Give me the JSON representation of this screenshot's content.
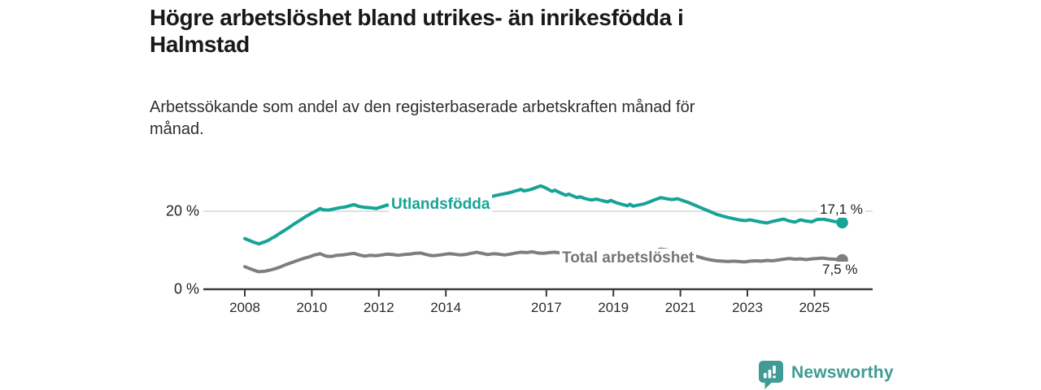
{
  "header": {
    "title_lines": [
      "Högre arbetslöshet bland utrikes- än inrikesfödda i",
      "Halmstad"
    ],
    "subtitle_lines": [
      "Arbetssökande som andel av den registerbaserade arbetskraften månad för",
      "månad."
    ]
  },
  "footer": {
    "brand": "Newsworthy",
    "logo_icon": "bar-chart-speech-bubble-icon",
    "brand_color": "#3f9b94"
  },
  "colors": {
    "series_foreign_born": "#17a398",
    "series_total": "#7e7e7e",
    "axis": "#3a3a3a",
    "gridline": "#cdcdcd",
    "text_dark": "#191919"
  },
  "chart_data": {
    "type": "line",
    "title": "Högre arbetslöshet bland utrikes- än inrikesfödda i Halmstad",
    "subtitle": "Arbetssökande som andel av den registerbaserade arbetskraften månad för månad.",
    "xlabel": "",
    "ylabel": "",
    "unit": "%",
    "ylim": [
      0,
      28
    ],
    "xlim_years": [
      2006.8,
      2026.7
    ],
    "grid": "y-at-20-only",
    "legend_position": "inline-labels",
    "x_ticks": [
      {
        "label": "2008",
        "year": 2008
      },
      {
        "label": "2010",
        "year": 2010
      },
      {
        "label": "2012",
        "year": 2012
      },
      {
        "label": "2014",
        "year": 2014
      },
      {
        "label": "2017",
        "year": 2017
      },
      {
        "label": "2019",
        "year": 2019
      },
      {
        "label": "2021",
        "year": 2021
      },
      {
        "label": "2023",
        "year": 2023
      },
      {
        "label": "2025",
        "year": 2025
      }
    ],
    "y_ticks": [
      {
        "label": "20 %",
        "value": 20
      },
      {
        "label": "0 %",
        "value": 0
      }
    ],
    "series": [
      {
        "name": "Utlandsfödda",
        "color": "#17a398",
        "end_label": "17,1 %",
        "end_value": 17.1,
        "points": [
          [
            2008.0,
            13.0
          ],
          [
            2008.08,
            12.7
          ],
          [
            2008.17,
            12.4
          ],
          [
            2008.25,
            12.1
          ],
          [
            2008.33,
            11.9
          ],
          [
            2008.42,
            11.6
          ],
          [
            2008.5,
            11.9
          ],
          [
            2008.58,
            12.1
          ],
          [
            2008.67,
            12.4
          ],
          [
            2008.75,
            12.8
          ],
          [
            2008.83,
            13.2
          ],
          [
            2008.92,
            13.6
          ],
          [
            2009.0,
            14.1
          ],
          [
            2009.17,
            15.0
          ],
          [
            2009.33,
            15.9
          ],
          [
            2009.5,
            16.9
          ],
          [
            2009.67,
            17.8
          ],
          [
            2009.83,
            18.7
          ],
          [
            2010.0,
            19.5
          ],
          [
            2010.17,
            20.3
          ],
          [
            2010.25,
            20.7
          ],
          [
            2010.33,
            20.4
          ],
          [
            2010.5,
            20.3
          ],
          [
            2010.67,
            20.6
          ],
          [
            2010.83,
            20.9
          ],
          [
            2011.0,
            21.1
          ],
          [
            2011.17,
            21.5
          ],
          [
            2011.25,
            21.7
          ],
          [
            2011.42,
            21.2
          ],
          [
            2011.58,
            21.0
          ],
          [
            2011.75,
            20.9
          ],
          [
            2011.92,
            20.7
          ],
          [
            2012.08,
            21.1
          ],
          [
            2012.25,
            21.6
          ],
          [
            2012.42,
            21.3
          ],
          [
            2012.58,
            21.1
          ],
          [
            2012.75,
            21.0
          ],
          [
            2012.92,
            21.2
          ],
          [
            2013.08,
            21.5
          ],
          [
            2013.25,
            21.8
          ],
          [
            2013.42,
            21.5
          ],
          [
            2013.58,
            21.3
          ],
          [
            2013.75,
            21.2
          ],
          [
            2013.92,
            21.4
          ],
          [
            2014.08,
            21.7
          ],
          [
            2014.25,
            21.9
          ],
          [
            2014.42,
            21.6
          ],
          [
            2014.58,
            21.5
          ],
          [
            2014.75,
            21.8
          ],
          [
            2014.92,
            22.4
          ],
          [
            2015.08,
            23.0
          ],
          [
            2015.25,
            23.5
          ],
          [
            2015.42,
            23.9
          ],
          [
            2015.58,
            24.2
          ],
          [
            2015.75,
            24.5
          ],
          [
            2015.92,
            24.8
          ],
          [
            2016.08,
            25.2
          ],
          [
            2016.25,
            25.6
          ],
          [
            2016.33,
            25.2
          ],
          [
            2016.5,
            25.5
          ],
          [
            2016.67,
            26.0
          ],
          [
            2016.83,
            26.5
          ],
          [
            2016.92,
            26.2
          ],
          [
            2017.0,
            25.9
          ],
          [
            2017.08,
            25.5
          ],
          [
            2017.17,
            25.1
          ],
          [
            2017.25,
            25.4
          ],
          [
            2017.42,
            24.7
          ],
          [
            2017.58,
            24.1
          ],
          [
            2017.67,
            24.4
          ],
          [
            2017.83,
            23.8
          ],
          [
            2017.92,
            23.5
          ],
          [
            2018.0,
            23.7
          ],
          [
            2018.17,
            23.2
          ],
          [
            2018.33,
            22.9
          ],
          [
            2018.5,
            23.1
          ],
          [
            2018.67,
            22.7
          ],
          [
            2018.83,
            22.4
          ],
          [
            2018.92,
            22.8
          ],
          [
            2019.08,
            22.2
          ],
          [
            2019.25,
            21.8
          ],
          [
            2019.42,
            21.4
          ],
          [
            2019.5,
            21.8
          ],
          [
            2019.58,
            21.3
          ],
          [
            2019.75,
            21.6
          ],
          [
            2019.92,
            21.9
          ],
          [
            2020.08,
            22.4
          ],
          [
            2020.25,
            23.0
          ],
          [
            2020.42,
            23.5
          ],
          [
            2020.58,
            23.2
          ],
          [
            2020.75,
            23.0
          ],
          [
            2020.92,
            23.2
          ],
          [
            2021.08,
            22.7
          ],
          [
            2021.25,
            22.2
          ],
          [
            2021.42,
            21.6
          ],
          [
            2021.58,
            21.0
          ],
          [
            2021.75,
            20.4
          ],
          [
            2021.92,
            19.8
          ],
          [
            2022.08,
            19.2
          ],
          [
            2022.25,
            18.8
          ],
          [
            2022.42,
            18.4
          ],
          [
            2022.58,
            18.1
          ],
          [
            2022.75,
            17.8
          ],
          [
            2022.92,
            17.6
          ],
          [
            2023.08,
            17.8
          ],
          [
            2023.25,
            17.5
          ],
          [
            2023.42,
            17.2
          ],
          [
            2023.58,
            17.0
          ],
          [
            2023.75,
            17.4
          ],
          [
            2023.92,
            17.7
          ],
          [
            2024.08,
            18.0
          ],
          [
            2024.25,
            17.5
          ],
          [
            2024.42,
            17.2
          ],
          [
            2024.58,
            17.8
          ],
          [
            2024.75,
            17.5
          ],
          [
            2024.92,
            17.3
          ],
          [
            2025.08,
            17.9
          ],
          [
            2025.25,
            18.0
          ],
          [
            2025.42,
            17.7
          ],
          [
            2025.58,
            17.4
          ],
          [
            2025.75,
            17.2
          ],
          [
            2025.83,
            17.1
          ]
        ]
      },
      {
        "name": "Total arbetslöshet",
        "color": "#7e7e7e",
        "end_label": "7,5 %",
        "end_value": 7.5,
        "points": [
          [
            2008.0,
            5.8
          ],
          [
            2008.17,
            5.2
          ],
          [
            2008.33,
            4.7
          ],
          [
            2008.42,
            4.5
          ],
          [
            2008.58,
            4.6
          ],
          [
            2008.75,
            4.9
          ],
          [
            2008.92,
            5.3
          ],
          [
            2009.08,
            5.8
          ],
          [
            2009.25,
            6.4
          ],
          [
            2009.42,
            6.9
          ],
          [
            2009.58,
            7.4
          ],
          [
            2009.75,
            7.9
          ],
          [
            2009.92,
            8.3
          ],
          [
            2010.08,
            8.8
          ],
          [
            2010.25,
            9.1
          ],
          [
            2010.42,
            8.5
          ],
          [
            2010.58,
            8.4
          ],
          [
            2010.75,
            8.7
          ],
          [
            2010.92,
            8.8
          ],
          [
            2011.08,
            9.0
          ],
          [
            2011.25,
            9.2
          ],
          [
            2011.42,
            8.8
          ],
          [
            2011.58,
            8.5
          ],
          [
            2011.75,
            8.7
          ],
          [
            2011.92,
            8.6
          ],
          [
            2012.08,
            8.8
          ],
          [
            2012.25,
            9.0
          ],
          [
            2012.42,
            8.9
          ],
          [
            2012.58,
            8.7
          ],
          [
            2012.75,
            8.9
          ],
          [
            2012.92,
            9.0
          ],
          [
            2013.08,
            9.2
          ],
          [
            2013.25,
            9.3
          ],
          [
            2013.42,
            8.9
          ],
          [
            2013.58,
            8.6
          ],
          [
            2013.75,
            8.7
          ],
          [
            2013.92,
            8.9
          ],
          [
            2014.08,
            9.1
          ],
          [
            2014.25,
            9.0
          ],
          [
            2014.42,
            8.8
          ],
          [
            2014.58,
            8.9
          ],
          [
            2014.75,
            9.2
          ],
          [
            2014.92,
            9.5
          ],
          [
            2015.08,
            9.2
          ],
          [
            2015.25,
            8.9
          ],
          [
            2015.42,
            9.1
          ],
          [
            2015.58,
            9.0
          ],
          [
            2015.75,
            8.8
          ],
          [
            2015.92,
            9.0
          ],
          [
            2016.08,
            9.3
          ],
          [
            2016.25,
            9.5
          ],
          [
            2016.42,
            9.4
          ],
          [
            2016.58,
            9.6
          ],
          [
            2016.75,
            9.3
          ],
          [
            2016.92,
            9.2
          ],
          [
            2017.08,
            9.4
          ],
          [
            2017.25,
            9.5
          ],
          [
            2017.42,
            9.3
          ],
          [
            2017.58,
            9.1
          ],
          [
            2017.75,
            9.0
          ],
          [
            2017.92,
            9.2
          ],
          [
            2018.08,
            9.0
          ],
          [
            2018.25,
            8.8
          ],
          [
            2018.42,
            8.6
          ],
          [
            2018.58,
            8.7
          ],
          [
            2018.75,
            8.5
          ],
          [
            2018.92,
            8.6
          ],
          [
            2019.08,
            8.4
          ],
          [
            2019.25,
            8.2
          ],
          [
            2019.42,
            8.3
          ],
          [
            2019.58,
            8.1
          ],
          [
            2019.75,
            8.2
          ],
          [
            2019.92,
            8.5
          ],
          [
            2020.08,
            9.2
          ],
          [
            2020.25,
            9.9
          ],
          [
            2020.42,
            10.3
          ],
          [
            2020.58,
            10.1
          ],
          [
            2020.75,
            9.9
          ],
          [
            2020.92,
            9.6
          ],
          [
            2021.08,
            9.3
          ],
          [
            2021.25,
            9.0
          ],
          [
            2021.42,
            8.6
          ],
          [
            2021.58,
            8.2
          ],
          [
            2021.75,
            7.8
          ],
          [
            2021.92,
            7.5
          ],
          [
            2022.08,
            7.3
          ],
          [
            2022.25,
            7.2
          ],
          [
            2022.42,
            7.1
          ],
          [
            2022.58,
            7.2
          ],
          [
            2022.75,
            7.1
          ],
          [
            2022.92,
            7.0
          ],
          [
            2023.08,
            7.2
          ],
          [
            2023.25,
            7.3
          ],
          [
            2023.42,
            7.2
          ],
          [
            2023.58,
            7.4
          ],
          [
            2023.75,
            7.3
          ],
          [
            2023.92,
            7.5
          ],
          [
            2024.08,
            7.7
          ],
          [
            2024.25,
            7.9
          ],
          [
            2024.42,
            7.7
          ],
          [
            2024.58,
            7.8
          ],
          [
            2024.75,
            7.6
          ],
          [
            2024.92,
            7.8
          ],
          [
            2025.08,
            7.9
          ],
          [
            2025.25,
            8.0
          ],
          [
            2025.42,
            7.8
          ],
          [
            2025.58,
            7.7
          ],
          [
            2025.75,
            7.6
          ],
          [
            2025.83,
            7.5
          ]
        ]
      }
    ]
  }
}
